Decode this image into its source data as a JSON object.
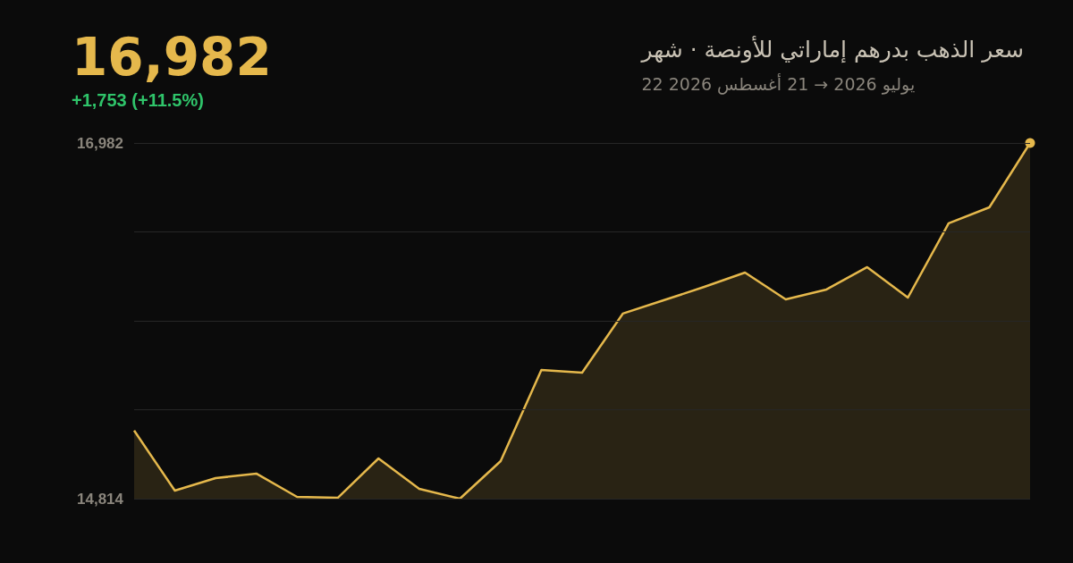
{
  "chart_data": {
    "type": "area",
    "title": "سعر الذهب بدرهم إماراتي للأونصة · شهر",
    "subtitle": "22 يوليو 2026 → 21 أغسطس 2026",
    "annotations": [
      "16,982",
      "+1,753 (+11.5%)"
    ],
    "categories": [
      null,
      null,
      null,
      null,
      null,
      null,
      null,
      null,
      null,
      null,
      null,
      null,
      null,
      null,
      null,
      null,
      null,
      null,
      null,
      null,
      null,
      null,
      null
    ],
    "series": [
      {
        "color": "#e5b84c",
        "values": [
          15229,
          14863,
          14939,
          14967,
          14825,
          14819,
          15059,
          14874,
          14814,
          15043,
          15598,
          15582,
          15942,
          16023,
          16105,
          16192,
          16029,
          16089,
          16225,
          16040,
          16492,
          16590,
          16982
        ]
      }
    ],
    "ylim": [
      14814,
      16982
    ],
    "yticks": [
      {
        "value": 14814,
        "label": "14,814"
      },
      {
        "value": 15356,
        "label": null
      },
      {
        "value": 15898,
        "label": null
      },
      {
        "value": 16440,
        "label": null
      },
      {
        "value": 16982,
        "label": "16,982"
      }
    ],
    "grid": "y"
  }
}
